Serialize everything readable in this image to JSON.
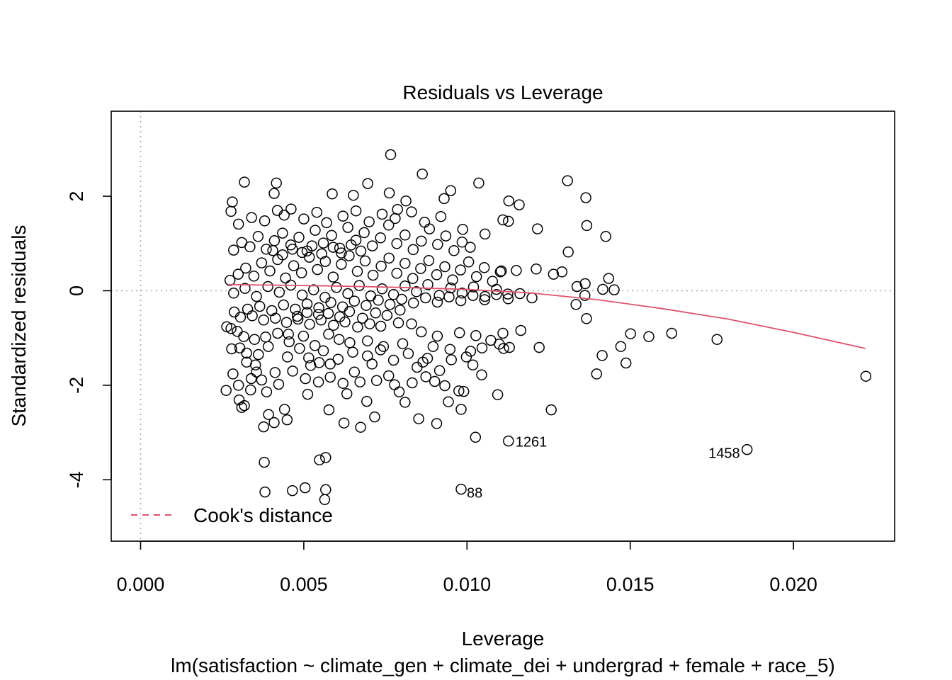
{
  "chart_data": {
    "type": "scatter",
    "title": "Residuals vs Leverage",
    "xlabel": "Leverage",
    "ylabel": "Standardized residuals",
    "subtitle": "lm(satisfaction ~ climate_gen + climate_dei + undergrad + female + race_5)",
    "xlim": [
      -0.0009,
      0.0231
    ],
    "ylim": [
      -5.3,
      3.8
    ],
    "x_ticks": [
      0.0,
      0.005,
      0.01,
      0.015,
      0.02
    ],
    "x_tick_labels": [
      "0.000",
      "0.005",
      "0.010",
      "0.015",
      "0.020"
    ],
    "y_ticks": [
      -4,
      -2,
      0,
      2
    ],
    "y_tick_labels": [
      "-4",
      "-2",
      "0",
      "2"
    ],
    "grid": false,
    "reference_lines": {
      "x": 0,
      "y": 0,
      "style": "dotted",
      "color": "#aaaaaa"
    },
    "legend": {
      "placement": "bottom-left",
      "entries": [
        {
          "label": "Cook's distance",
          "color": "#df536b",
          "style": "dashed"
        }
      ]
    },
    "smooth": {
      "color": "#df536b",
      "x": [
        0.0027,
        0.004,
        0.006,
        0.008,
        0.01,
        0.012,
        0.014,
        0.016,
        0.018,
        0.02,
        0.0222
      ],
      "y": [
        0.13,
        0.12,
        0.1,
        0.07,
        0.03,
        -0.05,
        -0.19,
        -0.38,
        -0.6,
        -0.88,
        -1.22
      ]
    },
    "labeled_points": [
      {
        "label": "1261",
        "x": 0.01127,
        "y": -3.18
      },
      {
        "label": "1458",
        "x": 0.01858,
        "y": -3.36
      },
      {
        "label": "88",
        "x": 0.00982,
        "y": -4.2
      }
    ],
    "points": [
      [
        0.00766,
        2.88
      ],
      [
        0.00863,
        2.47
      ],
      [
        0.01308,
        2.33
      ],
      [
        0.00318,
        2.3
      ],
      [
        0.00416,
        2.28
      ],
      [
        0.01036,
        2.28
      ],
      [
        0.00696,
        2.27
      ],
      [
        0.0095,
        2.12
      ],
      [
        0.00762,
        2.07
      ],
      [
        0.00409,
        2.06
      ],
      [
        0.00587,
        2.05
      ],
      [
        0.00652,
        2.02
      ],
      [
        0.01364,
        1.97
      ],
      [
        0.0093,
        1.95
      ],
      [
        0.00281,
        1.88
      ],
      [
        0.01128,
        1.9
      ],
      [
        0.00813,
        1.9
      ],
      [
        0.0116,
        1.82
      ],
      [
        0.00277,
        1.68
      ],
      [
        0.00419,
        1.7
      ],
      [
        0.00461,
        1.73
      ],
      [
        0.00787,
        1.72
      ],
      [
        0.01127,
        1.47
      ],
      [
        0.0111,
        1.5
      ],
      [
        0.01367,
        1.38
      ],
      [
        0.01216,
        1.31
      ],
      [
        0.01425,
        1.15
      ],
      [
        0.00987,
        1.3
      ],
      [
        0.01055,
        1.2
      ],
      [
        0.0131,
        0.82
      ],
      [
        0.01291,
        0.4
      ],
      [
        0.01265,
        0.35
      ],
      [
        0.01212,
        0.46
      ],
      [
        0.01151,
        0.43
      ],
      [
        0.01105,
        0.42
      ],
      [
        0.01434,
        0.26
      ],
      [
        0.01337,
        0.09
      ],
      [
        0.01362,
        0.15
      ],
      [
        0.01451,
        0.02
      ],
      [
        0.01416,
        0.03
      ],
      [
        0.01361,
        -0.1
      ],
      [
        0.01334,
        -0.29
      ],
      [
        0.01366,
        -0.59
      ],
      [
        0.01165,
        -0.84
      ],
      [
        0.01221,
        -1.2
      ],
      [
        0.0113,
        -1.2
      ],
      [
        0.01501,
        -0.91
      ],
      [
        0.01557,
        -0.97
      ],
      [
        0.01627,
        -0.9
      ],
      [
        0.01766,
        -1.03
      ],
      [
        0.01471,
        -1.18
      ],
      [
        0.01414,
        -1.37
      ],
      [
        0.01487,
        -1.53
      ],
      [
        0.01397,
        -1.76
      ],
      [
        0.01045,
        -1.78
      ],
      [
        0.01094,
        -2.2
      ],
      [
        0.01018,
        -1.57
      ],
      [
        0.00975,
        -2.12
      ],
      [
        0.0099,
        -2.13
      ],
      [
        0.00982,
        -2.51
      ],
      [
        0.01258,
        -2.52
      ],
      [
        0.00943,
        -2.35
      ],
      [
        0.00907,
        -2.81
      ],
      [
        0.00852,
        -2.71
      ],
      [
        0.01026,
        -3.1
      ],
      [
        0.01127,
        -3.18
      ],
      [
        0.01858,
        -3.36
      ],
      [
        0.02222,
        -1.81
      ],
      [
        0.00982,
        -4.2
      ],
      [
        0.00567,
        -3.53
      ],
      [
        0.00548,
        -3.58
      ],
      [
        0.00379,
        -3.63
      ],
      [
        0.00567,
        -4.21
      ],
      [
        0.00564,
        -4.42
      ],
      [
        0.00504,
        -4.17
      ],
      [
        0.00465,
        -4.23
      ],
      [
        0.00381,
        -4.26
      ],
      [
        0.00392,
        -2.62
      ],
      [
        0.00409,
        -2.79
      ],
      [
        0.00377,
        -2.88
      ],
      [
        0.00449,
        -2.73
      ],
      [
        0.00441,
        -2.51
      ],
      [
        0.00577,
        -2.52
      ],
      [
        0.00623,
        -2.8
      ],
      [
        0.00674,
        -2.89
      ],
      [
        0.00717,
        -2.67
      ],
      [
        0.00318,
        -2.43
      ],
      [
        0.0031,
        -2.47
      ],
      [
        0.00302,
        -2.31
      ],
      [
        0.00337,
        -2.1
      ],
      [
        0.00262,
        -2.11
      ],
      [
        0.003,
        -2.0
      ],
      [
        0.00386,
        -2.14
      ],
      [
        0.00423,
        -1.98
      ],
      [
        0.00512,
        -2.19
      ],
      [
        0.00632,
        -2.18
      ],
      [
        0.00693,
        -2.34
      ],
      [
        0.00792,
        -2.14
      ],
      [
        0.0081,
        -2.36
      ],
      [
        0.00901,
        -1.92
      ],
      [
        0.00932,
        -2.01
      ],
      [
        0.00283,
        -1.76
      ],
      [
        0.00355,
        -1.72
      ],
      [
        0.00361,
        -1.35
      ],
      [
        0.00325,
        -1.32
      ],
      [
        0.00391,
        -1.18
      ],
      [
        0.00279,
        -1.23
      ],
      [
        0.00264,
        -0.76
      ],
      [
        0.00277,
        -0.8
      ],
      [
        0.00296,
        -0.86
      ],
      [
        0.0045,
        -1.4
      ],
      [
        0.00487,
        -1.22
      ],
      [
        0.00521,
        -1.58
      ],
      [
        0.00547,
        -1.52
      ],
      [
        0.00581,
        -1.55
      ],
      [
        0.00655,
        -1.72
      ],
      [
        0.00709,
        -1.55
      ],
      [
        0.0076,
        -1.8
      ],
      [
        0.00847,
        -1.62
      ],
      [
        0.00879,
        -1.43
      ],
      [
        0.00896,
        -1.18
      ],
      [
        0.00909,
        -0.96
      ],
      [
        0.00948,
        -1.24
      ],
      [
        0.00977,
        -0.89
      ],
      [
        0.01011,
        -1.28
      ],
      [
        0.01027,
        -0.95
      ],
      [
        0.01073,
        -1.05
      ],
      [
        0.0111,
        -0.9
      ],
      [
        0.01112,
        -1.22
      ],
      [
        0.0086,
        -0.87
      ],
      [
        0.00803,
        -1.12
      ],
      [
        0.00744,
        -1.18
      ],
      [
        0.00695,
        -1.06
      ],
      [
        0.00641,
        -1.1
      ],
      [
        0.00608,
        -1.03
      ],
      [
        0.00576,
        -0.92
      ],
      [
        0.00534,
        -1.16
      ],
      [
        0.00499,
        -0.96
      ],
      [
        0.00453,
        -0.92
      ],
      [
        0.0042,
        -0.9
      ],
      [
        0.00383,
        -0.98
      ],
      [
        0.00349,
        -1.03
      ],
      [
        0.00316,
        -0.97
      ],
      [
        0.00304,
        -1.21
      ],
      [
        0.00325,
        -1.51
      ],
      [
        0.00352,
        -1.57
      ],
      [
        0.00371,
        -1.89
      ],
      [
        0.00339,
        -1.86
      ],
      [
        0.00412,
        -1.73
      ],
      [
        0.00466,
        -1.7
      ],
      [
        0.00505,
        -1.86
      ],
      [
        0.00545,
        -1.93
      ],
      [
        0.00581,
        -1.83
      ],
      [
        0.0062,
        -1.96
      ],
      [
        0.00672,
        -1.93
      ],
      [
        0.00723,
        -1.9
      ],
      [
        0.00778,
        -1.99
      ],
      [
        0.00832,
        -1.95
      ],
      [
        0.00874,
        -1.82
      ],
      [
        0.00916,
        -1.69
      ],
      [
        0.00952,
        -1.46
      ],
      [
        0.00998,
        -1.4
      ],
      [
        0.01046,
        -1.21
      ],
      [
        0.01099,
        -1.13
      ],
      [
        0.0083,
        -0.7
      ],
      [
        0.0079,
        -0.68
      ],
      [
        0.00736,
        -0.75
      ],
      [
        0.00702,
        -0.7
      ],
      [
        0.00665,
        -0.77
      ],
      [
        0.00626,
        -0.66
      ],
      [
        0.00591,
        -0.73
      ],
      [
        0.00553,
        -0.62
      ],
      [
        0.00518,
        -0.71
      ],
      [
        0.00482,
        -0.6
      ],
      [
        0.00447,
        -0.67
      ],
      [
        0.00413,
        -0.58
      ],
      [
        0.00377,
        -0.62
      ],
      [
        0.00342,
        -0.53
      ],
      [
        0.00306,
        -0.56
      ],
      [
        0.00287,
        -0.45
      ],
      [
        0.00328,
        -0.39
      ],
      [
        0.00365,
        -0.33
      ],
      [
        0.00402,
        -0.42
      ],
      [
        0.00438,
        -0.3
      ],
      [
        0.00474,
        -0.39
      ],
      [
        0.0051,
        -0.28
      ],
      [
        0.00546,
        -0.36
      ],
      [
        0.00583,
        -0.25
      ],
      [
        0.00619,
        -0.34
      ],
      [
        0.00655,
        -0.22
      ],
      [
        0.00691,
        -0.31
      ],
      [
        0.00728,
        -0.2
      ],
      [
        0.00764,
        -0.29
      ],
      [
        0.008,
        -0.18
      ],
      [
        0.00836,
        -0.26
      ],
      [
        0.00873,
        -0.15
      ],
      [
        0.00909,
        -0.24
      ],
      [
        0.00945,
        -0.13
      ],
      [
        0.00981,
        -0.21
      ],
      [
        0.01018,
        -0.1
      ],
      [
        0.01054,
        -0.19
      ],
      [
        0.0109,
        -0.08
      ],
      [
        0.01126,
        -0.17
      ],
      [
        0.01162,
        -0.06
      ],
      [
        0.01199,
        -0.15
      ],
      [
        0.00274,
        0.22
      ],
      [
        0.00299,
        0.35
      ],
      [
        0.00322,
        0.48
      ],
      [
        0.00347,
        0.31
      ],
      [
        0.00371,
        0.59
      ],
      [
        0.00396,
        0.42
      ],
      [
        0.0042,
        0.66
      ],
      [
        0.00444,
        0.27
      ],
      [
        0.00469,
        0.53
      ],
      [
        0.00493,
        0.38
      ],
      [
        0.00517,
        0.71
      ],
      [
        0.00542,
        0.45
      ],
      [
        0.00566,
        0.62
      ],
      [
        0.0059,
        0.29
      ],
      [
        0.00615,
        0.56
      ],
      [
        0.00639,
        0.74
      ],
      [
        0.00664,
        0.41
      ],
      [
        0.00688,
        0.63
      ],
      [
        0.00712,
        0.33
      ],
      [
        0.00737,
        0.52
      ],
      [
        0.00761,
        0.69
      ],
      [
        0.00785,
        0.37
      ],
      [
        0.0081,
        0.58
      ],
      [
        0.00834,
        0.26
      ],
      [
        0.00858,
        0.47
      ],
      [
        0.00883,
        0.64
      ],
      [
        0.00907,
        0.34
      ],
      [
        0.00932,
        0.51
      ],
      [
        0.00956,
        0.23
      ],
      [
        0.0098,
        0.44
      ],
      [
        0.01005,
        0.61
      ],
      [
        0.01029,
        0.3
      ],
      [
        0.01053,
        0.49
      ],
      [
        0.01078,
        0.2
      ],
      [
        0.01102,
        0.4
      ],
      [
        0.00285,
        0.86
      ],
      [
        0.0031,
        1.02
      ],
      [
        0.00335,
        0.93
      ],
      [
        0.0036,
        1.15
      ],
      [
        0.00385,
        0.88
      ],
      [
        0.0041,
        1.06
      ],
      [
        0.00435,
        1.22
      ],
      [
        0.0046,
        0.97
      ],
      [
        0.00485,
        1.13
      ],
      [
        0.0051,
        0.84
      ],
      [
        0.00535,
        1.28
      ],
      [
        0.0056,
        1.01
      ],
      [
        0.00585,
        1.17
      ],
      [
        0.0061,
        0.9
      ],
      [
        0.00635,
        1.34
      ],
      [
        0.0066,
        1.07
      ],
      [
        0.00685,
        1.23
      ],
      [
        0.0071,
        0.95
      ],
      [
        0.00735,
        1.12
      ],
      [
        0.0076,
        1.39
      ],
      [
        0.00785,
        1.0
      ],
      [
        0.0081,
        1.18
      ],
      [
        0.00835,
        0.87
      ],
      [
        0.0086,
        1.05
      ],
      [
        0.00885,
        1.31
      ],
      [
        0.0091,
        0.98
      ],
      [
        0.00935,
        1.16
      ],
      [
        0.0096,
        0.85
      ],
      [
        0.00985,
        1.03
      ],
      [
        0.0101,
        0.92
      ],
      [
        0.003,
        1.41
      ],
      [
        0.0034,
        1.55
      ],
      [
        0.0038,
        1.48
      ],
      [
        0.0044,
        1.6
      ],
      [
        0.005,
        1.52
      ],
      [
        0.0054,
        1.66
      ],
      [
        0.0057,
        1.44
      ],
      [
        0.0062,
        1.58
      ],
      [
        0.0066,
        1.69
      ],
      [
        0.007,
        1.46
      ],
      [
        0.0074,
        1.62
      ],
      [
        0.0078,
        1.53
      ],
      [
        0.0083,
        1.67
      ],
      [
        0.0087,
        1.45
      ],
      [
        0.0092,
        1.57
      ],
      [
        0.00285,
        -0.05
      ],
      [
        0.0032,
        0.05
      ],
      [
        0.00355,
        -0.12
      ],
      [
        0.0039,
        0.09
      ],
      [
        0.00425,
        -0.03
      ],
      [
        0.0046,
        0.12
      ],
      [
        0.00495,
        -0.09
      ],
      [
        0.0053,
        0.02
      ],
      [
        0.00565,
        -0.14
      ],
      [
        0.006,
        0.07
      ],
      [
        0.00635,
        -0.06
      ],
      [
        0.0067,
        0.11
      ],
      [
        0.00705,
        -0.11
      ],
      [
        0.0074,
        0.04
      ],
      [
        0.00775,
        -0.08
      ],
      [
        0.0081,
        0.1
      ],
      [
        0.00845,
        -0.02
      ],
      [
        0.0088,
        0.13
      ],
      [
        0.00915,
        -0.1
      ],
      [
        0.0095,
        0.06
      ],
      [
        0.00985,
        -0.05
      ],
      [
        0.0102,
        0.08
      ],
      [
        0.01055,
        -0.12
      ],
      [
        0.0109,
        0.03
      ],
      [
        0.01125,
        -0.07
      ],
      [
        0.00515,
        -1.42
      ],
      [
        0.0056,
        -1.27
      ],
      [
        0.00605,
        -1.45
      ],
      [
        0.0065,
        -1.3
      ],
      [
        0.00695,
        -1.38
      ],
      [
        0.00735,
        -1.25
      ],
      [
        0.00775,
        -1.47
      ],
      [
        0.0082,
        -1.33
      ],
      [
        0.00865,
        -1.51
      ],
      [
        0.00455,
        -1.08
      ],
      [
        0.0059,
        0.92
      ],
      [
        0.00615,
        0.8
      ],
      [
        0.00645,
        0.97
      ],
      [
        0.00675,
        0.84
      ],
      [
        0.00555,
        0.78
      ],
      [
        0.00525,
        0.95
      ],
      [
        0.00495,
        0.81
      ],
      [
        0.00465,
        0.88
      ],
      [
        0.00435,
        0.76
      ],
      [
        0.00405,
        0.85
      ],
      [
        0.00575,
        -0.48
      ],
      [
        0.0061,
        -0.55
      ],
      [
        0.0064,
        -0.44
      ],
      [
        0.0068,
        -0.58
      ],
      [
        0.00545,
        -0.5
      ],
      [
        0.0051,
        -0.46
      ],
      [
        0.0048,
        -0.54
      ],
      [
        0.0072,
        -0.47
      ],
      [
        0.00755,
        -0.52
      ],
      [
        0.00795,
        -0.41
      ]
    ]
  }
}
